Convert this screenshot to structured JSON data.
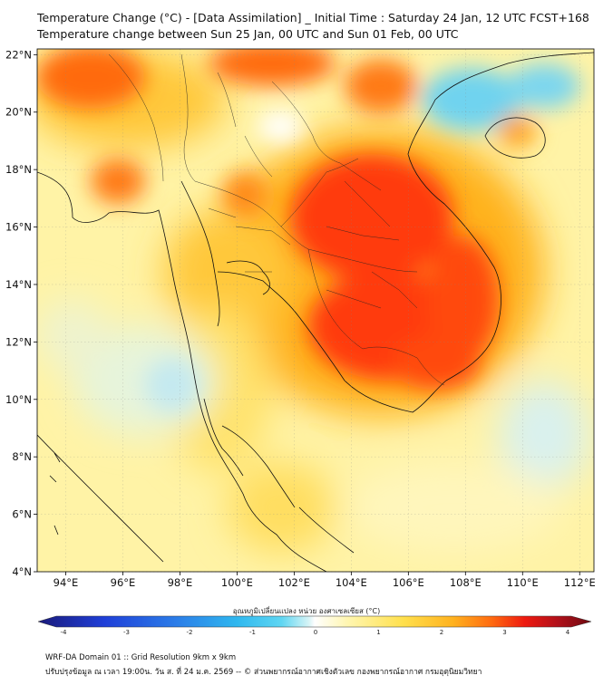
{
  "header": {
    "title_line1": "Temperature Change (°C) - [Data Assimilation] _ Initial Time : Saturday 24 Jan, 12 UTC FCST+168",
    "title_line2": "Temperature change between Sun 25 Jan, 00 UTC and Sun 01 Feb, 00 UTC"
  },
  "map": {
    "lon_range": [
      93,
      112.5
    ],
    "lat_range": [
      4,
      22.2
    ],
    "lat_ticks": [
      {
        "value": 22,
        "label": "22°N"
      },
      {
        "value": 20,
        "label": "20°N"
      },
      {
        "value": 18,
        "label": "18°N"
      },
      {
        "value": 16,
        "label": "16°N"
      },
      {
        "value": 14,
        "label": "14°N"
      },
      {
        "value": 12,
        "label": "12°N"
      },
      {
        "value": 10,
        "label": "10°N"
      },
      {
        "value": 8,
        "label": "8°N"
      },
      {
        "value": 6,
        "label": "6°N"
      },
      {
        "value": 4,
        "label": "4°N"
      }
    ],
    "lon_ticks": [
      {
        "value": 94,
        "label": "94°E"
      },
      {
        "value": 96,
        "label": "96°E"
      },
      {
        "value": 98,
        "label": "98°E"
      },
      {
        "value": 100,
        "label": "100°E"
      },
      {
        "value": 102,
        "label": "102°E"
      },
      {
        "value": 104,
        "label": "104°E"
      },
      {
        "value": 106,
        "label": "106°E"
      },
      {
        "value": 108,
        "label": "108°E"
      },
      {
        "value": 110,
        "label": "110°E"
      },
      {
        "value": 112,
        "label": "112°E"
      }
    ],
    "gridlines": true
  },
  "colorbar": {
    "title": "อุณหภูมิเปลี่ยนแปลง หน่วย องศาเซลเซียส (°C)",
    "min": -4,
    "max": 4,
    "tick_values": [
      -4,
      -3,
      -2,
      -1,
      0,
      1,
      2,
      3,
      4
    ],
    "tick_labels": [
      "-4",
      "-3",
      "-2",
      "-1",
      "0",
      "1",
      "2",
      "3",
      "4"
    ],
    "colors": [
      "#1a1a7a",
      "#1f3fd8",
      "#2b7de8",
      "#2fb8ef",
      "#5fd6f2",
      "#b6ebf2",
      "#ffffff",
      "#fff6b0",
      "#ffe04d",
      "#ffb21f",
      "#ff6a10",
      "#ee1a10",
      "#b0101a",
      "#6e0a10"
    ]
  },
  "footer": {
    "line1": "WRF-DA Domain 01 :: Grid Resolution 9km x 9km",
    "line2": "ปรับปรุงข้อมูล ณ เวลา 19:00น. วัน ส. ที่ 24 ม.ค. 2569 -- © ส่วนพยากรณ์อากาศเชิงตัวเลข กองพยากรณ์อากาศ กรมอุตุนิยมวิทยา"
  }
}
